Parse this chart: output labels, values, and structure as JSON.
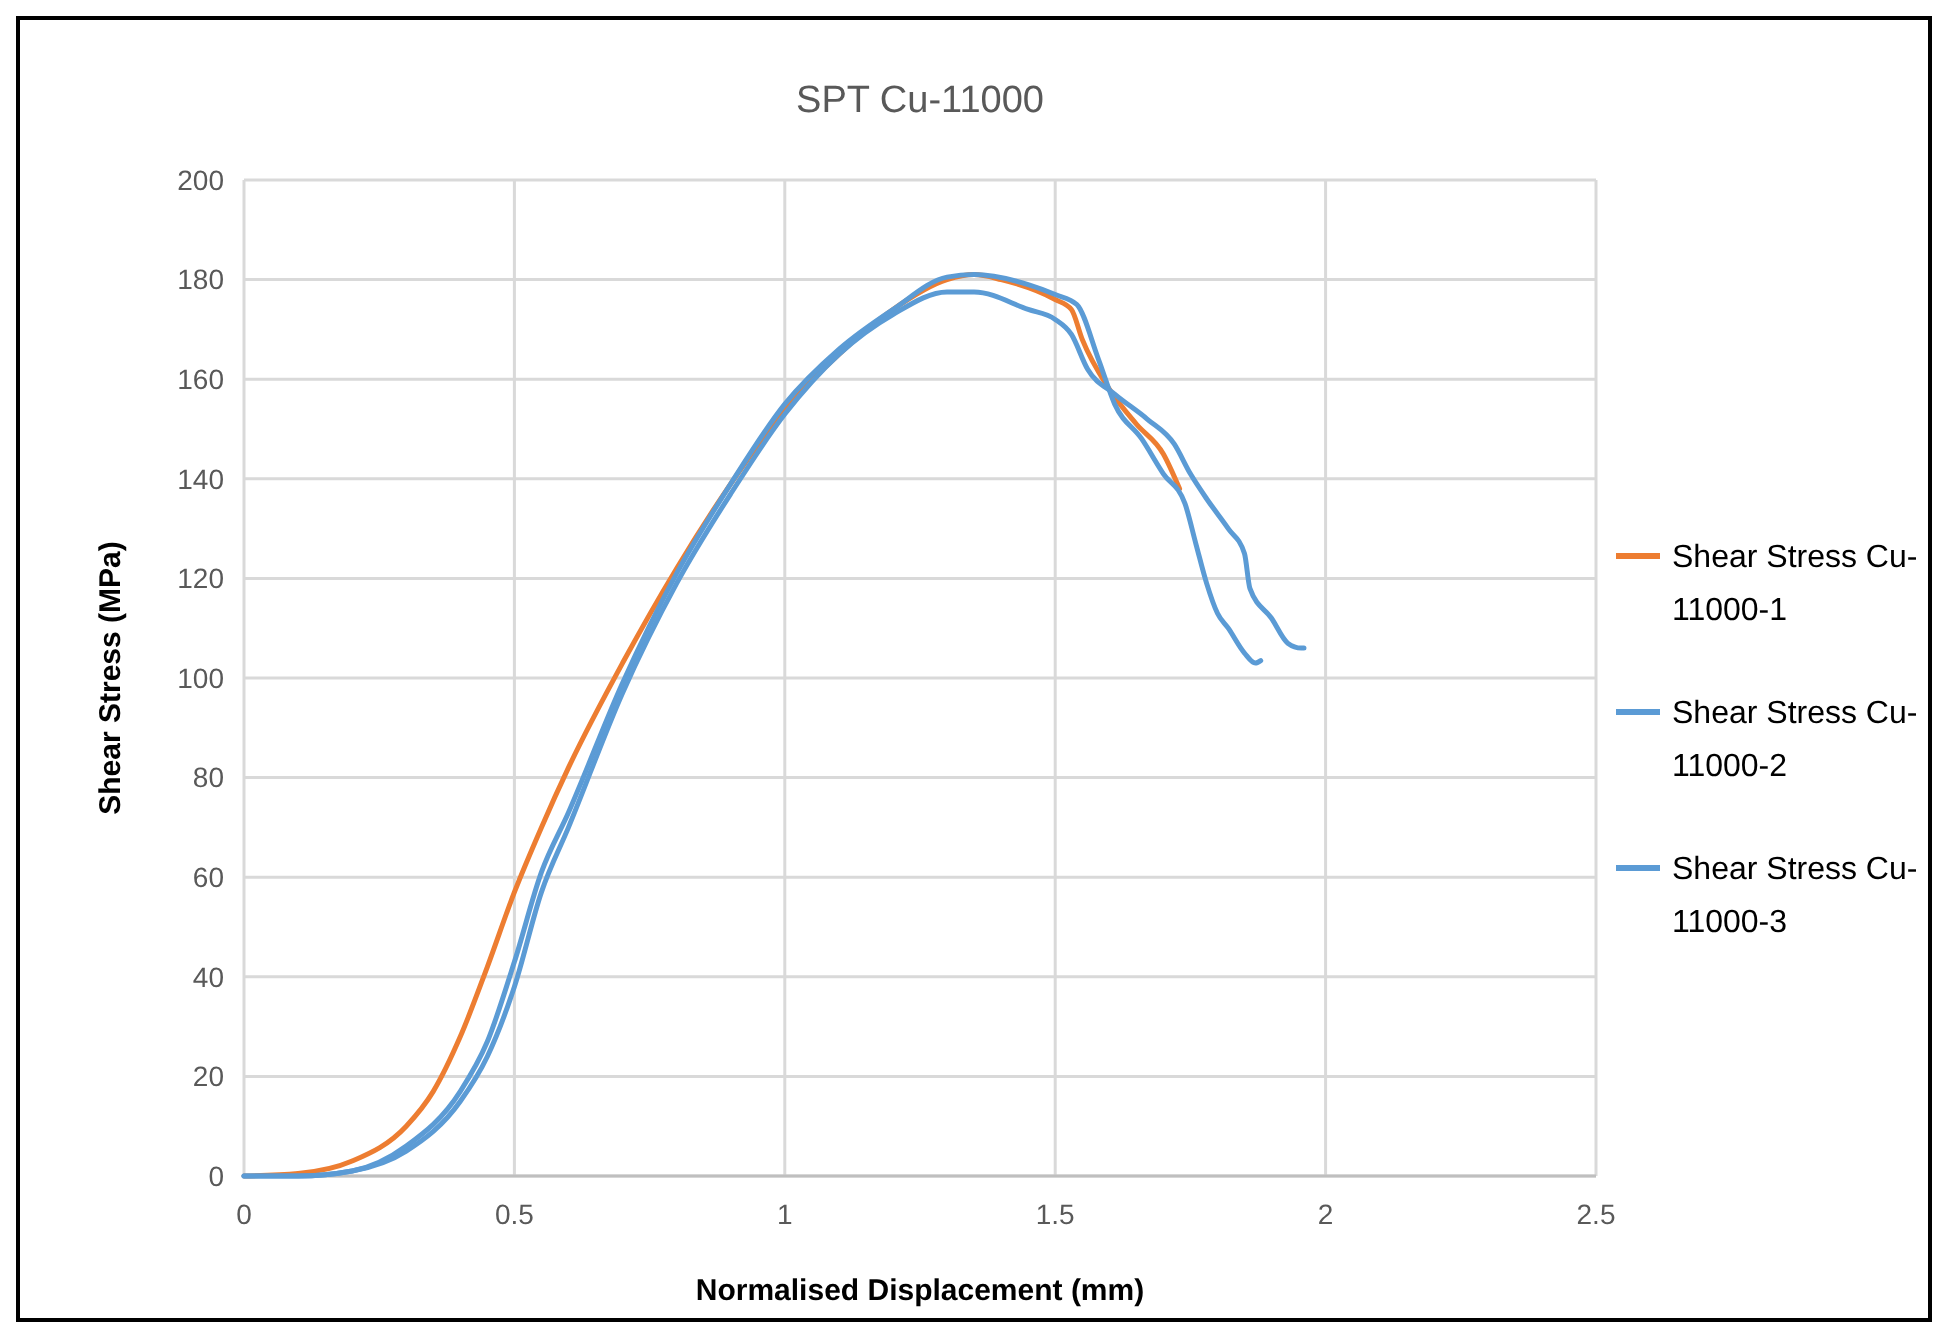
{
  "chart_data": {
    "type": "line",
    "title": "SPT Cu-11000",
    "xlabel": "Normalised Displacement (mm)",
    "ylabel": "Shear Stress (MPa)",
    "xlim": [
      0,
      2.5
    ],
    "xticks": [
      0,
      0.5,
      1,
      1.5,
      2,
      2.5
    ],
    "ylim": [
      0,
      200
    ],
    "yticks": [
      0,
      20,
      40,
      60,
      80,
      100,
      120,
      140,
      160,
      180,
      200
    ],
    "grid": true,
    "legend": "right",
    "line_style": "solid",
    "marker": "none",
    "series": [
      {
        "name": "Shear Stress Cu-11000-1",
        "color": "#ed7d31",
        "x": [
          0,
          0.1,
          0.2,
          0.3,
          0.35,
          0.4,
          0.45,
          0.5,
          0.55,
          0.6,
          0.7,
          0.8,
          0.9,
          1.0,
          1.1,
          1.2,
          1.3,
          1.35,
          1.4,
          1.5,
          1.53,
          1.55,
          1.6,
          1.65,
          1.7,
          1.73
        ],
        "values": [
          0,
          0.5,
          3,
          10,
          17,
          28,
          42,
          57,
          70,
          82,
          103,
          122,
          139,
          154,
          165,
          174,
          180,
          181,
          180,
          176,
          174,
          168,
          158,
          151,
          145,
          138
        ]
      },
      {
        "name": "Shear Stress Cu-11000-2",
        "color": "#5b9bd5",
        "x": [
          0,
          0.1,
          0.2,
          0.3,
          0.4,
          0.45,
          0.5,
          0.55,
          0.6,
          0.7,
          0.8,
          0.9,
          1.0,
          1.1,
          1.2,
          1.3,
          1.35,
          1.45,
          1.5,
          1.54,
          1.58,
          1.61,
          1.66,
          1.7,
          1.74,
          1.76,
          1.78,
          1.8,
          1.82,
          1.85,
          1.87,
          1.88
        ],
        "values": [
          0,
          0,
          1,
          6,
          17,
          27,
          43,
          61,
          73,
          99,
          121,
          139,
          155,
          166,
          174,
          180.5,
          181,
          179,
          177,
          175,
          164,
          155,
          148,
          141,
          135,
          127,
          119,
          113,
          110,
          105,
          103,
          103.5
        ]
      },
      {
        "name": "Shear Stress Cu-11000-3",
        "color": "#5b9bd5",
        "x": [
          0,
          0.1,
          0.2,
          0.3,
          0.4,
          0.45,
          0.5,
          0.55,
          0.6,
          0.7,
          0.8,
          0.9,
          1.0,
          1.1,
          1.2,
          1.3,
          1.35,
          1.45,
          1.5,
          1.53,
          1.56,
          1.61,
          1.67,
          1.72,
          1.75,
          1.78,
          1.82,
          1.85,
          1.86,
          1.9,
          1.93,
          1.955,
          1.96
        ],
        "values": [
          0,
          0,
          1,
          5,
          15,
          24,
          38,
          57,
          70,
          97,
          119,
          137,
          153,
          165,
          173,
          177.5,
          177.5,
          174,
          172,
          169,
          162,
          157,
          152,
          147,
          141,
          136,
          130,
          125,
          118,
          112,
          107,
          106,
          106
        ]
      }
    ]
  }
}
